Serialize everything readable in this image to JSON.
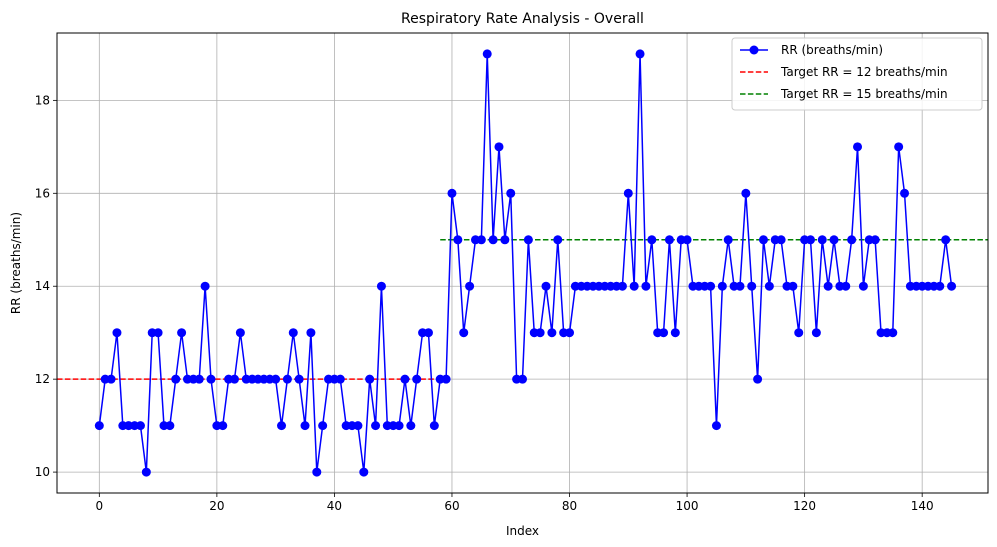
{
  "chart_data": {
    "type": "line",
    "title": "Respiratory Rate Analysis - Overall",
    "xlabel": "Index",
    "ylabel": "RR (breaths/min)",
    "xlim": [
      -7.2,
      151.2
    ],
    "ylim": [
      9.55,
      19.45
    ],
    "xticks": [
      0,
      20,
      40,
      60,
      80,
      100,
      120,
      140
    ],
    "yticks": [
      10,
      12,
      14,
      16,
      18
    ],
    "grid": true,
    "legend_position": "top-right",
    "series": [
      {
        "name": "RR (breaths/min)",
        "color": "#0000ff",
        "style": "solid-with-circle-markers",
        "x_start": 0,
        "values": [
          11,
          12,
          12,
          13,
          11,
          11,
          11,
          11,
          10,
          13,
          13,
          11,
          11,
          12,
          13,
          12,
          12,
          12,
          14,
          12,
          11,
          11,
          12,
          12,
          13,
          12,
          12,
          12,
          12,
          12,
          12,
          11,
          12,
          13,
          12,
          11,
          13,
          10,
          11,
          12,
          12,
          12,
          11,
          11,
          11,
          10,
          12,
          11,
          14,
          11,
          11,
          11,
          12,
          11,
          12,
          13,
          13,
          11,
          12,
          12,
          16,
          15,
          13,
          14,
          15,
          15,
          19,
          15,
          17,
          15,
          16,
          12,
          12,
          15,
          13,
          13,
          14,
          13,
          15,
          13,
          13,
          14,
          14,
          14,
          14,
          14,
          14,
          14,
          14,
          14,
          16,
          14,
          19,
          14,
          15,
          13,
          13,
          15,
          13,
          15,
          15,
          14,
          14,
          14,
          14,
          11,
          14,
          15,
          14,
          14,
          16,
          14,
          12,
          15,
          14,
          15,
          15,
          14,
          14,
          13,
          15,
          15,
          13,
          15,
          14,
          15,
          14,
          14,
          15,
          17,
          14,
          15,
          15,
          13,
          13,
          13,
          17,
          16,
          14,
          14,
          14,
          14,
          14,
          14,
          15,
          14
        ]
      },
      {
        "name": "Target RR = 12 breaths/min",
        "color": "#ff0000",
        "style": "dashed",
        "x": [
          -7.2,
          58
        ],
        "value": 12
      },
      {
        "name": "Target RR = 15 breaths/min",
        "color": "#008000",
        "style": "dashed",
        "x": [
          58,
          151.2
        ],
        "value": 15
      }
    ]
  }
}
